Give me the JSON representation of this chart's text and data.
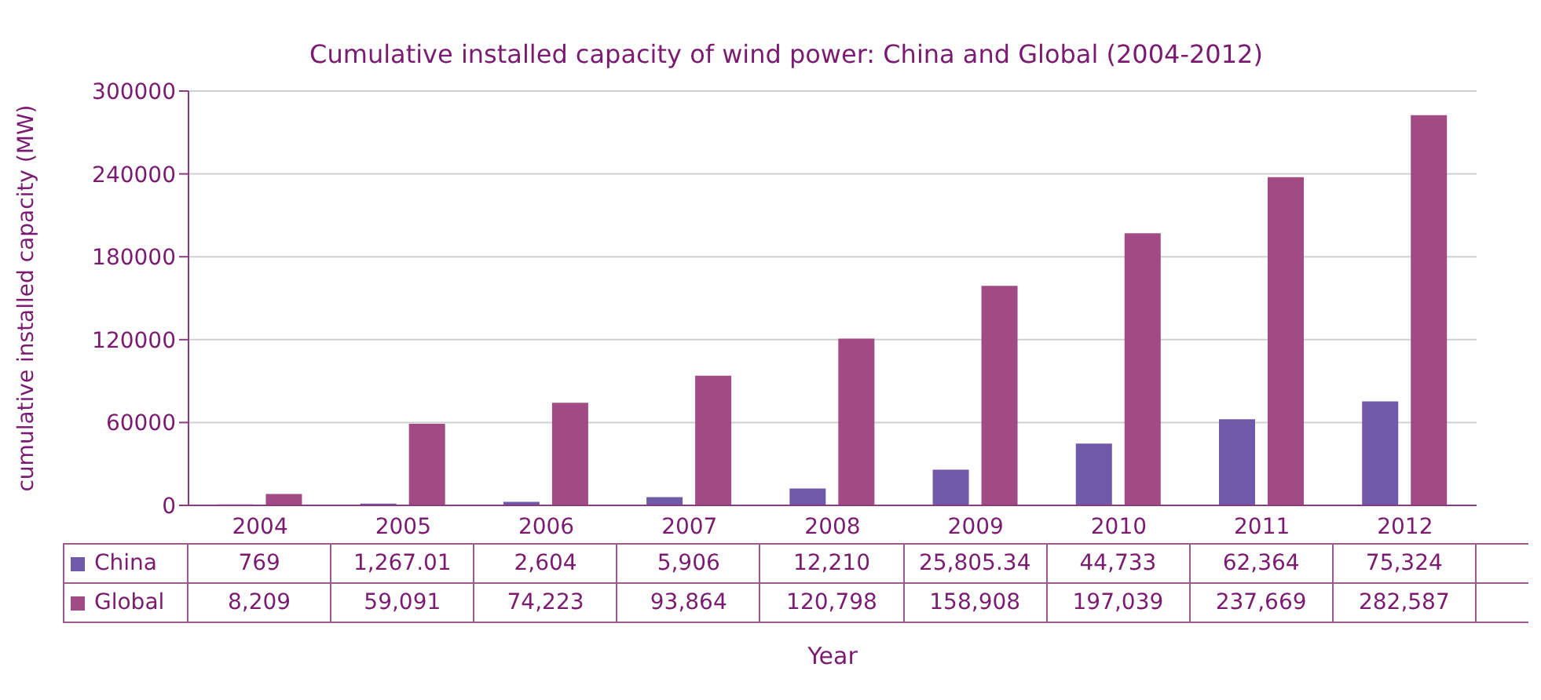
{
  "chart_data": {
    "type": "bar",
    "title": "Cumulative installed capacity of wind power: China and Global (2004-2012)",
    "xlabel": "Year",
    "ylabel": "cumulative installed capacity (MW)",
    "categories": [
      "2004",
      "2005",
      "2006",
      "2007",
      "2008",
      "2009",
      "2010",
      "2011",
      "2012"
    ],
    "series": [
      {
        "name": "China",
        "color": "#6e5aa8",
        "values": [
          769,
          1267.01,
          2604,
          5906,
          12210,
          25805.34,
          44733,
          62364,
          75324
        ],
        "value_labels": [
          "769",
          "1,267.01",
          "2,604",
          "5,906",
          "12,210",
          "25,805.34",
          "44,733",
          "62,364",
          "75,324"
        ]
      },
      {
        "name": "Global",
        "color": "#a24a84",
        "values": [
          8209,
          59091,
          74223,
          93864,
          120798,
          158908,
          197039,
          237669,
          282587
        ],
        "value_labels": [
          "8,209",
          "59,091",
          "74,223",
          "93,864",
          "120,798",
          "158,908",
          "197,039",
          "237,669",
          "282,587"
        ]
      }
    ],
    "ylim": [
      0,
      300000
    ],
    "yticks": [
      0,
      60000,
      120000,
      180000,
      240000,
      300000
    ],
    "grid": "y",
    "legend": "bottom"
  }
}
